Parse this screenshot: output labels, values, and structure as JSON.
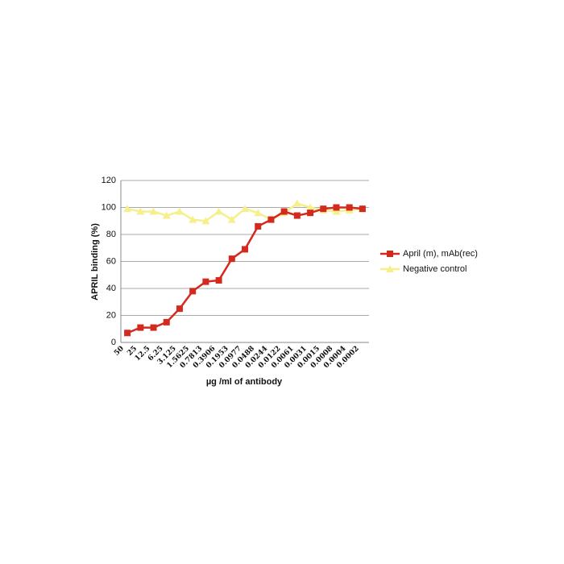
{
  "chart_data": {
    "type": "line",
    "x_label": "µg /ml of antibody",
    "y_label": "APRIL binding (%)",
    "categories": [
      "50",
      "25",
      "12.5",
      "6.25",
      "3.125",
      "1.5625",
      "0.7813",
      "0.3906",
      "0.1953",
      "0.0977",
      "0.0488",
      "0.0244",
      "0.0122",
      "0.0061",
      "0.0031",
      "0.0015",
      "0.0008",
      "0.0004",
      "0.0002"
    ],
    "series": [
      {
        "name": "April (m), mAb(rec)",
        "color": "#d42a1e",
        "marker": "square",
        "values": [
          7,
          11,
          11,
          15,
          25,
          38,
          45,
          46,
          62,
          69,
          86,
          91,
          97,
          94,
          96,
          99,
          100,
          100,
          99
        ]
      },
      {
        "name": "Negative control",
        "color": "#f5f08c",
        "marker": "triangle",
        "values": [
          99,
          97,
          97,
          94,
          97,
          91,
          90,
          97,
          91,
          99,
          96,
          91,
          96,
          103,
          100,
          98,
          97,
          98,
          99
        ]
      }
    ],
    "ylim": [
      0,
      120
    ],
    "yticks": [
      0,
      20,
      40,
      60,
      80,
      100,
      120
    ],
    "grid": true,
    "legend": "right"
  }
}
